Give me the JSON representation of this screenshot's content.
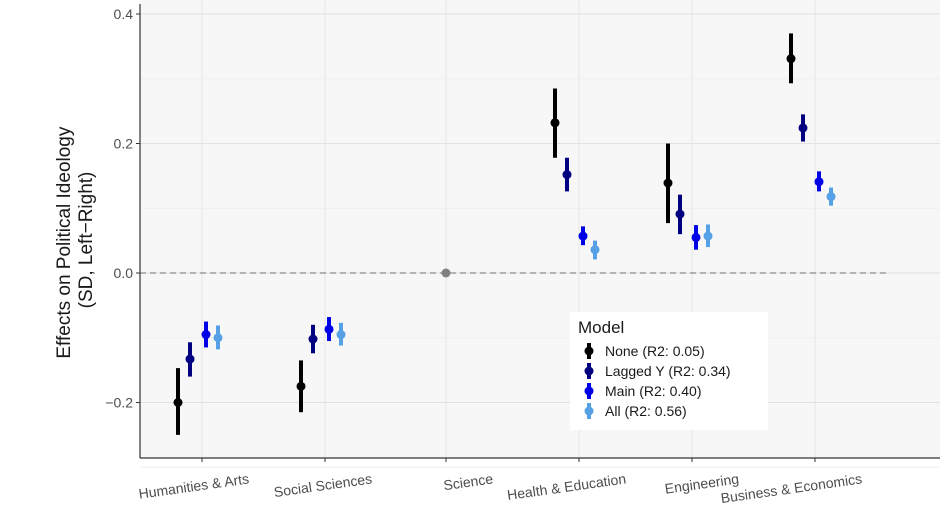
{
  "chart_data": {
    "type": "scatter",
    "subtype": "point-range",
    "title": "",
    "xlabel": "",
    "ylabel": "Effects on Political Ideology\n(SD, Left−Right)",
    "ylim": [
      -0.28,
      0.4
    ],
    "yticks": [
      -0.2,
      0.0,
      0.2,
      0.4
    ],
    "ytick_labels": [
      "−0.2",
      "0.0",
      "0.2",
      "0.4"
    ],
    "reference_line": 0.0,
    "categories": [
      "Humanities & Arts",
      "Social Sciences",
      "Science",
      "Health & Education",
      "Engineering",
      "Business & Economics"
    ],
    "reference_category": {
      "name": "Science",
      "value": 0.0,
      "color": "#808080"
    },
    "legend": {
      "title": "Model",
      "position": "bottom-right"
    },
    "series": [
      {
        "name": "None (R2: 0.05)",
        "color": "#000000",
        "values": [
          -0.2,
          -0.175,
          null,
          0.232,
          0.139,
          0.331
        ],
        "lower": [
          -0.25,
          -0.215,
          null,
          0.178,
          0.077,
          0.293
        ],
        "upper": [
          -0.147,
          -0.135,
          null,
          0.285,
          0.2,
          0.37
        ]
      },
      {
        "name": "Lagged Y (R2: 0.34)",
        "color": "#000080",
        "values": [
          -0.133,
          -0.102,
          null,
          0.152,
          0.091,
          0.224
        ],
        "lower": [
          -0.16,
          -0.124,
          null,
          0.126,
          0.06,
          0.203
        ],
        "upper": [
          -0.107,
          -0.08,
          null,
          0.178,
          0.121,
          0.245
        ]
      },
      {
        "name": "Main (R2: 0.40)",
        "color": "#0000e6",
        "values": [
          -0.095,
          -0.087,
          null,
          0.057,
          0.055,
          0.141
        ],
        "lower": [
          -0.115,
          -0.105,
          null,
          0.043,
          0.036,
          0.126
        ],
        "upper": [
          -0.075,
          -0.068,
          null,
          0.072,
          0.074,
          0.157
        ]
      },
      {
        "name": "All (R2: 0.56)",
        "color": "#56a0e6",
        "values": [
          -0.1,
          -0.095,
          null,
          0.036,
          0.057,
          0.118
        ],
        "lower": [
          -0.118,
          -0.112,
          null,
          0.021,
          0.04,
          0.104
        ],
        "upper": [
          -0.081,
          -0.077,
          null,
          0.05,
          0.075,
          0.132
        ]
      }
    ]
  }
}
